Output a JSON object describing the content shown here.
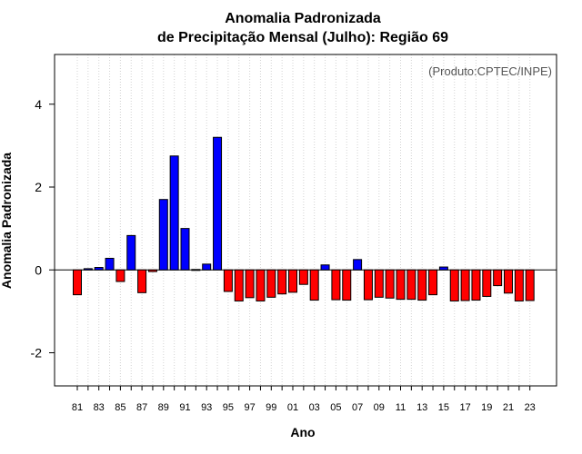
{
  "chart_data": {
    "type": "bar",
    "title": "Anomalia Padronizada",
    "subtitle": "de Precipitação Mensal (Julho): Região 69",
    "xlabel": "Ano",
    "ylabel": "Anomalia Padronizada",
    "credit": "(Produto:CPTEC/INPE)",
    "ylim": [
      -2.8,
      5.2
    ],
    "yticks": [
      -2,
      0,
      2,
      4
    ],
    "grid": "vertical dotted",
    "categories": [
      "81",
      "82",
      "83",
      "84",
      "85",
      "86",
      "87",
      "88",
      "89",
      "90",
      "91",
      "92",
      "93",
      "94",
      "95",
      "96",
      "97",
      "98",
      "99",
      "00",
      "01",
      "02",
      "03",
      "04",
      "05",
      "06",
      "07",
      "08",
      "09",
      "10",
      "11",
      "12",
      "13",
      "14",
      "15",
      "16",
      "17",
      "18",
      "19",
      "20",
      "21",
      "22",
      "23"
    ],
    "xtick_labels": [
      "81",
      "83",
      "85",
      "87",
      "89",
      "91",
      "93",
      "95",
      "97",
      "99",
      "01",
      "03",
      "05",
      "07",
      "09",
      "11",
      "13",
      "15",
      "17",
      "19",
      "21",
      "23"
    ],
    "values": [
      -0.6,
      0.03,
      0.06,
      0.28,
      -0.28,
      0.83,
      -0.55,
      -0.04,
      1.7,
      2.75,
      1.0,
      0.01,
      0.14,
      3.2,
      -0.52,
      -0.75,
      -0.67,
      -0.75,
      -0.66,
      -0.58,
      -0.54,
      -0.35,
      -0.73,
      0.12,
      -0.72,
      -0.73,
      0.25,
      -0.72,
      -0.66,
      -0.68,
      -0.71,
      -0.71,
      -0.73,
      -0.6,
      0.07,
      -0.75,
      -0.74,
      -0.73,
      -0.64,
      -0.38,
      -0.56,
      -0.75,
      -0.74
    ],
    "colors": {
      "positive": "#0000ff",
      "negative": "#ff0000",
      "outline": "#000000"
    }
  }
}
